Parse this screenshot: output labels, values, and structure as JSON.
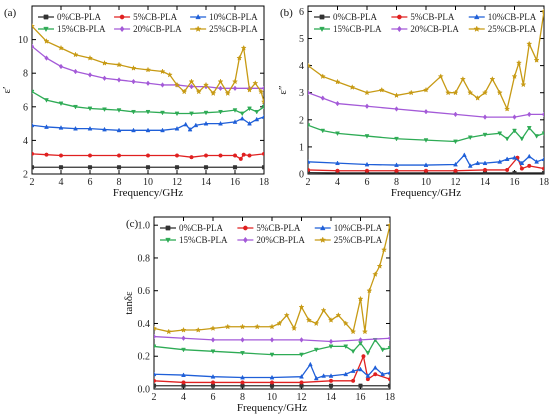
{
  "chart_data": [
    {
      "type": "line",
      "panel_label": "(a)",
      "ylabel": "ε′",
      "xlabel": "Frequency/GHz",
      "xlim": [
        2,
        18
      ],
      "ylim": [
        2,
        12
      ],
      "x_ticks": [
        2,
        4,
        6,
        8,
        10,
        12,
        14,
        16,
        18
      ],
      "y_ticks": [
        2,
        4,
        6,
        8,
        10
      ],
      "grid": false,
      "legend": "top",
      "series": [
        {
          "name": "0%CB-PLA",
          "color": "#333333",
          "marker": "square",
          "x": [
            2,
            4,
            6,
            8,
            10,
            12,
            14,
            16,
            18
          ],
          "y": [
            2.4,
            2.4,
            2.4,
            2.4,
            2.4,
            2.4,
            2.4,
            2.4,
            2.4
          ]
        },
        {
          "name": "5%CB-PLA",
          "color": "#e02020",
          "marker": "circle",
          "x": [
            2,
            3,
            4,
            6,
            8,
            10,
            12,
            13,
            14,
            15,
            16,
            16.4,
            16.6,
            17,
            18
          ],
          "y": [
            3.2,
            3.15,
            3.1,
            3.1,
            3.1,
            3.1,
            3.1,
            3.0,
            3.1,
            3.1,
            3.1,
            2.9,
            3.15,
            3.1,
            3.2
          ]
        },
        {
          "name": "10%CB-PLA",
          "color": "#1f5fd8",
          "marker": "triangle",
          "x": [
            2,
            3,
            4,
            5,
            6,
            7,
            8,
            9,
            10,
            11,
            12,
            12.6,
            12.9,
            13.3,
            14,
            15,
            16,
            16.5,
            17,
            17.5,
            18
          ],
          "y": [
            4.9,
            4.8,
            4.75,
            4.7,
            4.7,
            4.65,
            4.6,
            4.6,
            4.6,
            4.6,
            4.7,
            4.95,
            4.65,
            4.9,
            5.0,
            5.0,
            5.1,
            5.3,
            5.0,
            5.25,
            5.4
          ]
        },
        {
          "name": "15%CB-PLA",
          "color": "#2eab55",
          "marker": "down-triangle",
          "x": [
            2,
            3,
            4,
            5,
            6,
            7,
            8,
            9,
            10,
            11,
            12,
            13,
            14,
            15,
            16,
            16.5,
            17,
            17.5,
            18
          ],
          "y": [
            6.9,
            6.4,
            6.2,
            6.0,
            5.9,
            5.85,
            5.8,
            5.7,
            5.7,
            5.65,
            5.6,
            5.6,
            5.65,
            5.7,
            5.8,
            5.6,
            5.9,
            5.7,
            6.0
          ]
        },
        {
          "name": "20%CB-PLA",
          "color": "#a45ad8",
          "marker": "diamond",
          "x": [
            2,
            3,
            4,
            5,
            6,
            7,
            8,
            9,
            10,
            11,
            12,
            13,
            14,
            15,
            16,
            17,
            18
          ],
          "y": [
            9.6,
            8.9,
            8.4,
            8.1,
            7.9,
            7.7,
            7.6,
            7.5,
            7.4,
            7.3,
            7.3,
            7.2,
            7.2,
            7.1,
            7.1,
            7.1,
            7.1
          ]
        },
        {
          "name": "25%CB-PLA",
          "color": "#c79a14",
          "marker": "star",
          "x": [
            2,
            3,
            4,
            5,
            6,
            7,
            8,
            9,
            10,
            11,
            11.5,
            12,
            12.5,
            13,
            13.5,
            14,
            14.5,
            15,
            15.5,
            16,
            16.3,
            16.6,
            17,
            17.4,
            17.8,
            18
          ],
          "y": [
            10.8,
            9.9,
            9.5,
            9.1,
            8.9,
            8.6,
            8.5,
            8.3,
            8.2,
            8.1,
            7.9,
            7.3,
            6.9,
            7.5,
            6.9,
            7.3,
            6.8,
            7.5,
            6.8,
            7.5,
            8.9,
            9.5,
            7.0,
            7.4,
            6.9,
            6.3
          ]
        }
      ]
    },
    {
      "type": "line",
      "panel_label": "(b)",
      "ylabel": "ε″",
      "xlabel": "Frequency/GHz",
      "xlim": [
        2,
        18
      ],
      "ylim": [
        0,
        6.2
      ],
      "x_ticks": [
        2,
        4,
        6,
        8,
        10,
        12,
        14,
        16,
        18
      ],
      "y_ticks": [
        0,
        1,
        2,
        3,
        4,
        5,
        6
      ],
      "grid": false,
      "legend": "top",
      "series": [
        {
          "name": "0%CB-PLA",
          "color": "#333333",
          "marker": "square",
          "x": [
            2,
            4,
            6,
            8,
            10,
            12,
            14,
            16,
            18
          ],
          "y": [
            0.05,
            0.04,
            0.04,
            0.04,
            0.04,
            0.04,
            0.04,
            0.04,
            0.04
          ]
        },
        {
          "name": "5%CB-PLA",
          "color": "#e02020",
          "marker": "circle",
          "x": [
            2,
            4,
            6,
            8,
            10,
            12,
            14,
            15.5,
            16.2,
            16.5,
            17,
            18
          ],
          "y": [
            0.15,
            0.12,
            0.12,
            0.12,
            0.12,
            0.12,
            0.15,
            0.15,
            0.6,
            0.2,
            0.3,
            0.2
          ]
        },
        {
          "name": "10%CB-PLA",
          "color": "#1f5fd8",
          "marker": "triangle",
          "x": [
            2,
            4,
            6,
            8,
            10,
            12,
            12.6,
            13,
            13.5,
            14,
            15,
            15.5,
            16,
            16.5,
            17,
            17.5,
            18
          ],
          "y": [
            0.45,
            0.4,
            0.35,
            0.33,
            0.33,
            0.35,
            0.7,
            0.3,
            0.4,
            0.4,
            0.45,
            0.55,
            0.6,
            0.4,
            0.65,
            0.45,
            0.55
          ]
        },
        {
          "name": "15%CB-PLA",
          "color": "#2eab55",
          "marker": "down-triangle",
          "x": [
            2,
            3,
            4,
            6,
            8,
            10,
            12,
            13,
            14,
            15,
            15.5,
            16,
            16.5,
            17,
            17.5,
            18
          ],
          "y": [
            1.8,
            1.6,
            1.5,
            1.4,
            1.3,
            1.25,
            1.2,
            1.35,
            1.45,
            1.5,
            1.3,
            1.6,
            1.3,
            1.7,
            1.4,
            1.5
          ]
        },
        {
          "name": "20%CB-PLA",
          "color": "#a45ad8",
          "marker": "diamond",
          "x": [
            2,
            3,
            4,
            6,
            8,
            10,
            12,
            14,
            16,
            17,
            18
          ],
          "y": [
            3.0,
            2.8,
            2.6,
            2.5,
            2.4,
            2.3,
            2.2,
            2.1,
            2.1,
            2.2,
            2.2
          ]
        },
        {
          "name": "25%CB-PLA",
          "color": "#c79a14",
          "marker": "star",
          "x": [
            2,
            3,
            4,
            5,
            6,
            7,
            8,
            9,
            10,
            11,
            11.5,
            12,
            12.5,
            13,
            13.5,
            14,
            14.5,
            15,
            15.5,
            16,
            16.3,
            16.6,
            17,
            17.5,
            18
          ],
          "y": [
            4.0,
            3.6,
            3.4,
            3.2,
            3.0,
            3.1,
            2.9,
            3.0,
            3.1,
            3.6,
            3.0,
            3.0,
            3.5,
            3.0,
            2.8,
            3.0,
            3.5,
            3.0,
            2.4,
            3.6,
            4.1,
            3.3,
            4.8,
            4.2,
            6.0
          ]
        }
      ]
    },
    {
      "type": "line",
      "panel_label": "(c)",
      "ylabel": "tanδε",
      "xlabel": "Frequency/GHz",
      "xlim": [
        2,
        18
      ],
      "ylim": [
        0,
        1.05
      ],
      "x_ticks": [
        2,
        4,
        6,
        8,
        10,
        12,
        14,
        16,
        18
      ],
      "y_ticks": [
        0.0,
        0.2,
        0.4,
        0.6,
        0.8,
        1.0
      ],
      "grid": false,
      "legend": "top",
      "series": [
        {
          "name": "0%CB-PLA",
          "color": "#333333",
          "marker": "square",
          "x": [
            2,
            4,
            6,
            8,
            10,
            12,
            14,
            16,
            18
          ],
          "y": [
            0.02,
            0.02,
            0.02,
            0.02,
            0.02,
            0.02,
            0.02,
            0.02,
            0.02
          ]
        },
        {
          "name": "5%CB-PLA",
          "color": "#e02020",
          "marker": "circle",
          "x": [
            2,
            4,
            6,
            8,
            10,
            12,
            14,
            15.5,
            16.2,
            16.5,
            17,
            18
          ],
          "y": [
            0.05,
            0.04,
            0.04,
            0.04,
            0.04,
            0.04,
            0.05,
            0.05,
            0.2,
            0.06,
            0.09,
            0.06
          ]
        },
        {
          "name": "10%CB-PLA",
          "color": "#1f5fd8",
          "marker": "triangle",
          "x": [
            2,
            4,
            6,
            8,
            10,
            12,
            12.6,
            13,
            13.5,
            14,
            15,
            15.5,
            16,
            16.5,
            17,
            17.5,
            18
          ],
          "y": [
            0.09,
            0.085,
            0.075,
            0.07,
            0.07,
            0.075,
            0.15,
            0.065,
            0.08,
            0.08,
            0.09,
            0.11,
            0.12,
            0.08,
            0.13,
            0.09,
            0.1
          ]
        },
        {
          "name": "15%CB-PLA",
          "color": "#2eab55",
          "marker": "down-triangle",
          "x": [
            2,
            4,
            6,
            8,
            10,
            12,
            13,
            14,
            15,
            15.5,
            16,
            16.5,
            17,
            17.5,
            18
          ],
          "y": [
            0.26,
            0.24,
            0.23,
            0.22,
            0.21,
            0.21,
            0.24,
            0.26,
            0.26,
            0.23,
            0.28,
            0.22,
            0.3,
            0.24,
            0.25
          ]
        },
        {
          "name": "20%CB-PLA",
          "color": "#a45ad8",
          "marker": "diamond",
          "x": [
            2,
            4,
            6,
            8,
            10,
            12,
            14,
            16,
            18
          ],
          "y": [
            0.32,
            0.31,
            0.3,
            0.3,
            0.3,
            0.3,
            0.29,
            0.3,
            0.31
          ]
        },
        {
          "name": "25%CB-PLA",
          "color": "#c79a14",
          "marker": "star",
          "x": [
            2,
            3,
            4,
            5,
            6,
            7,
            8,
            9,
            10,
            10.5,
            11,
            11.5,
            12,
            12.5,
            13,
            13.5,
            14,
            14.5,
            15,
            15.5,
            16,
            16.3,
            16.6,
            17,
            17.3,
            17.6,
            18
          ],
          "y": [
            0.37,
            0.35,
            0.36,
            0.36,
            0.37,
            0.38,
            0.38,
            0.38,
            0.38,
            0.4,
            0.45,
            0.37,
            0.5,
            0.42,
            0.4,
            0.48,
            0.42,
            0.45,
            0.4,
            0.35,
            0.55,
            0.35,
            0.6,
            0.7,
            0.75,
            0.85,
            1.0
          ]
        }
      ]
    }
  ]
}
